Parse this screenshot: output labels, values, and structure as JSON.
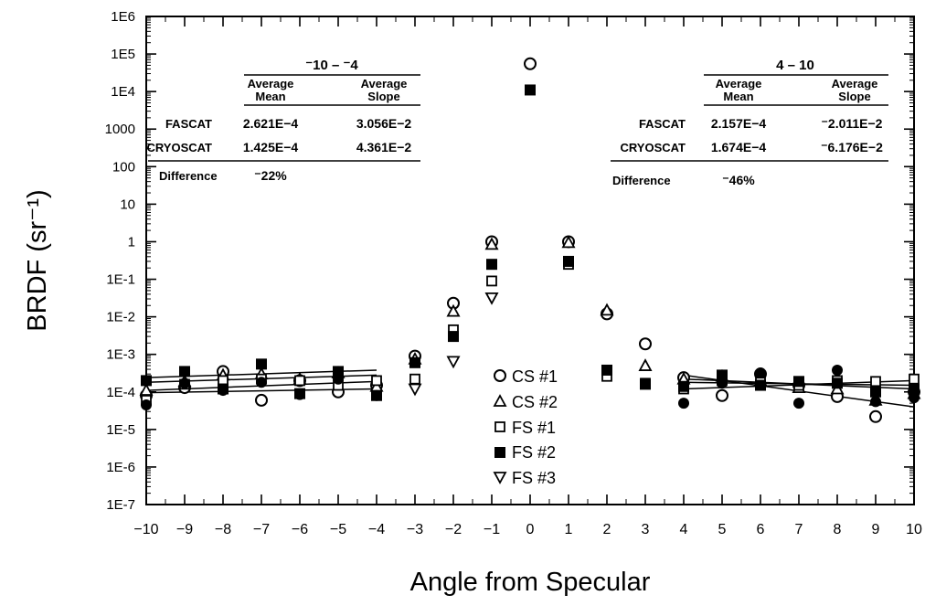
{
  "chart_data": {
    "type": "scatter",
    "title": "",
    "xlabel": "Angle from Specular",
    "ylabel": "BRDF (sr⁻¹)",
    "xlim": [
      -10,
      10
    ],
    "ylim": [
      1e-07,
      1000000.0
    ],
    "y_scale": "log",
    "x_ticks": [
      -10,
      -9,
      -8,
      -7,
      -6,
      -5,
      -4,
      -3,
      -2,
      -1,
      0,
      1,
      2,
      3,
      4,
      5,
      6,
      7,
      8,
      9,
      10
    ],
    "y_ticks": [
      {
        "value": 1000000.0,
        "label": "1E6"
      },
      {
        "value": 100000.0,
        "label": "1E5"
      },
      {
        "value": 10000.0,
        "label": "1E4"
      },
      {
        "value": 1000.0,
        "label": "1000"
      },
      {
        "value": 100.0,
        "label": "100"
      },
      {
        "value": 10,
        "label": "10"
      },
      {
        "value": 1,
        "label": "1"
      },
      {
        "value": 0.1,
        "label": "1E-1"
      },
      {
        "value": 0.01,
        "label": "1E-2"
      },
      {
        "value": 0.001,
        "label": "1E-3"
      },
      {
        "value": 0.0001,
        "label": "1E-4"
      },
      {
        "value": 1e-05,
        "label": "1E-5"
      },
      {
        "value": 1e-06,
        "label": "1E-6"
      },
      {
        "value": 1e-07,
        "label": "1E-7"
      }
    ],
    "grid": false,
    "legend_position": "center",
    "series": [
      {
        "name": "CS #1",
        "marker": "open-circle",
        "x": [
          -10,
          -9,
          -8,
          -7,
          -6,
          -5,
          -4,
          -3,
          -2,
          -1,
          0,
          1,
          2,
          3,
          4,
          5,
          6,
          7,
          8,
          9,
          10
        ],
        "y": [
          8e-05,
          0.00013,
          0.00035,
          6e-05,
          0.0002,
          0.0001,
          0.00015,
          0.0009,
          0.023,
          1.0,
          55000,
          1.0,
          0.012,
          0.0019,
          0.00024,
          8e-05,
          0.0003,
          0.00015,
          7.5e-05,
          2.2e-05,
          0.0001
        ]
      },
      {
        "name": "CS #2",
        "marker": "open-triangle",
        "x": [
          -10,
          -9,
          -8,
          -7,
          -6,
          -5,
          -4,
          -3,
          -2,
          -1,
          1,
          2,
          3,
          4,
          5,
          6,
          7,
          8,
          9,
          10
        ],
        "y": [
          0.00011,
          0.00019,
          0.00028,
          0.0003,
          0.00022,
          0.00032,
          0.00014,
          0.00075,
          0.014,
          0.85,
          0.95,
          0.015,
          0.0005,
          0.00022,
          0.00026,
          0.0002,
          0.00013,
          0.00012,
          6e-05,
          9e-05
        ]
      },
      {
        "name": "FS #1",
        "marker": "open-square",
        "x": [
          -10,
          -9,
          -8,
          -7,
          -6,
          -5,
          -4,
          -3,
          -2,
          -1,
          1,
          2,
          3,
          4,
          5,
          6,
          7,
          8,
          9,
          10
        ],
        "y": [
          6e-05,
          0.00016,
          0.0002,
          0.00022,
          0.0002,
          0.00015,
          0.0002,
          0.00022,
          0.0045,
          0.09,
          0.25,
          0.00026,
          0.00017,
          0.00012,
          0.0002,
          0.00018,
          0.00015,
          0.0002,
          0.00019,
          0.00022
        ]
      },
      {
        "name": "FS #2",
        "marker": "filled-square",
        "x": [
          -10,
          -9,
          -8,
          -7,
          -6,
          -5,
          -4,
          -3,
          -2,
          -1,
          0,
          1,
          2,
          3,
          4,
          5,
          6,
          7,
          8,
          9,
          10
        ],
        "y": [
          0.0002,
          0.00035,
          0.00012,
          0.00055,
          9e-05,
          0.00035,
          8e-05,
          0.0006,
          0.003,
          0.25,
          11000,
          0.3,
          0.00038,
          0.00016,
          0.00014,
          0.00028,
          0.00015,
          0.00019,
          0.00017,
          0.0001,
          0.00012
        ]
      },
      {
        "name": "FS #3",
        "marker": "open-inverted-triangle",
        "x": [
          -3,
          -2,
          -1
        ],
        "y": [
          0.00012,
          0.00065,
          0.032
        ]
      }
    ],
    "filled_circles": {
      "x": [
        -10,
        -9,
        -8,
        -7,
        -6,
        -5,
        -4,
        4,
        5,
        6,
        7,
        8,
        9,
        10
      ],
      "y": [
        4.5e-05,
        0.00017,
        0.00011,
        0.00018,
        8.5e-05,
        0.00022,
        8e-05,
        5e-05,
        0.00017,
        0.00032,
        5e-05,
        0.00038,
        5.5e-05,
        7e-05
      ]
    },
    "fit_lines": [
      {
        "x": [
          -10,
          -4
        ],
        "y": [
          0.00024,
          0.00038
        ]
      },
      {
        "x": [
          -10,
          -4
        ],
        "y": [
          0.00018,
          0.00028
        ]
      },
      {
        "x": [
          -10,
          -4
        ],
        "y": [
          0.00011,
          0.00019
        ]
      },
      {
        "x": [
          -10,
          -4
        ],
        "y": [
          9.5e-05,
          0.00012
        ]
      },
      {
        "x": [
          4,
          10
        ],
        "y": [
          0.00028,
          4e-05
        ]
      },
      {
        "x": [
          4,
          10
        ],
        "y": [
          0.00022,
          0.00012
        ]
      },
      {
        "x": [
          4,
          10
        ],
        "y": [
          0.00018,
          0.00015
        ]
      },
      {
        "x": [
          4,
          10
        ],
        "y": [
          0.00012,
          0.0002
        ]
      }
    ],
    "annotations": {
      "left_table": {
        "range": "⁻10 – ⁻4",
        "col1": [
          "Average",
          "Mean"
        ],
        "col2": [
          "Average",
          "Slope"
        ],
        "rows": [
          {
            "label": "FASCAT",
            "mean": "2.621E−4",
            "slope": "3.056E−2"
          },
          {
            "label": "CRYOSCAT",
            "mean": "1.425E−4",
            "slope": "4.361E−2"
          }
        ],
        "diff_label": "Difference",
        "diff_value": "⁻22%"
      },
      "right_table": {
        "range": "4 – 10",
        "col1": [
          "Average",
          "Mean"
        ],
        "col2": [
          "Average",
          "Slope"
        ],
        "rows": [
          {
            "label": "FASCAT",
            "mean": "2.157E−4",
            "slope": "⁻2.011E−2"
          },
          {
            "label": "CRYOSCAT",
            "mean": "1.674E−4",
            "slope": "⁻6.176E−2"
          }
        ],
        "diff_label": "Difference",
        "diff_value": "⁻46%"
      }
    }
  }
}
